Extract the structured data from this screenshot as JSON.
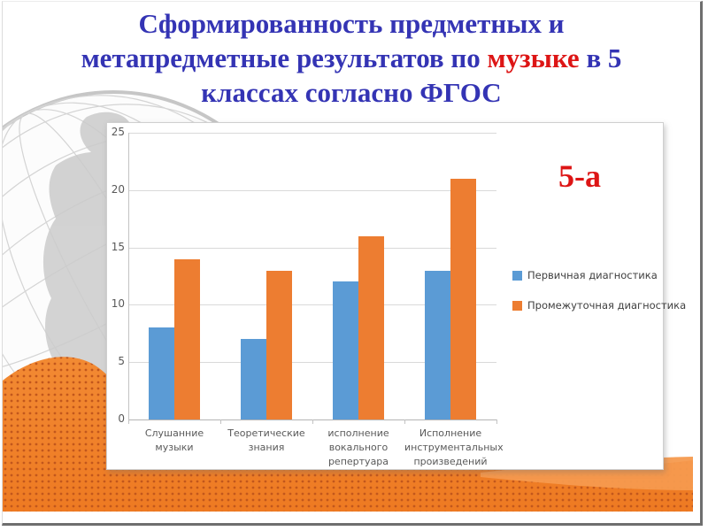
{
  "slide": {
    "title": {
      "line1": "Сформированность предметных и",
      "line2_pre": "метапредметные результатов  по ",
      "line2_highlight": "музыке",
      "line2_post": " в 5",
      "line3": "классах согласно ФГОС",
      "title_color": "#3434b4",
      "highlight_color": "#dd1515"
    },
    "class_label": "5-а"
  },
  "chart_data": {
    "type": "bar",
    "title": "",
    "categories": [
      "Слушанние музыки",
      "Теоретические знания",
      "исполнение вокального репертуара",
      "Исполнение инструментальных произведений"
    ],
    "series": [
      {
        "name": "Первичная диагностика",
        "color": "#5b9bd5",
        "values": [
          8,
          7,
          12,
          13
        ]
      },
      {
        "name": "Промежуточная диагностика",
        "color": "#ed7d31",
        "values": [
          14,
          13,
          16,
          21
        ]
      }
    ],
    "xlabel": "",
    "ylabel": "",
    "ylim": [
      0,
      25
    ],
    "yticks": [
      0,
      5,
      10,
      15,
      20,
      25
    ],
    "grid": true,
    "legend_position": "right"
  },
  "decor": {
    "wave_color": "#ee7a22",
    "wave_color_light_top": "#f28a33",
    "wave_dot_color": "#c2571c",
    "wave_highlight_color": "#f69a4e",
    "globe_continent_color": "#cbcbcb",
    "globe_line_color": "#d4d4d4"
  }
}
